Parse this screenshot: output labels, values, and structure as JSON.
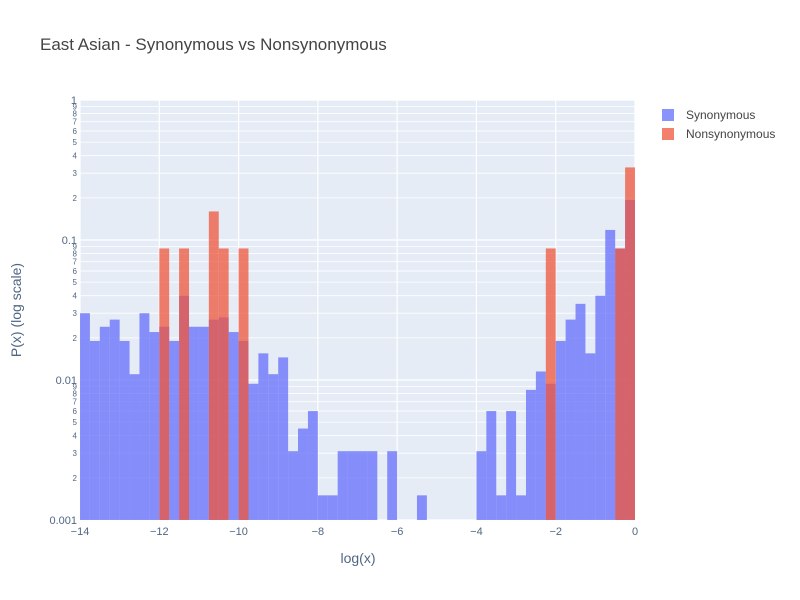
{
  "chart_data": {
    "type": "bar",
    "title": "East Asian - Synonymous vs Nonsynonymous",
    "xlabel": "log(x)",
    "ylabel": "P(x) (log scale)",
    "xlim": [
      -14,
      0
    ],
    "ylim": [
      0.001,
      1
    ],
    "y_scale": "log",
    "bin_width": 0.25,
    "grid": true,
    "legend_position": "top-right",
    "x_ticks": [
      "−14",
      "−12",
      "−10",
      "−8",
      "−6",
      "−4",
      "−2",
      "0"
    ],
    "y_major_ticks": [
      "0.001",
      "0.01",
      "0.1",
      "1"
    ],
    "y_minor_tick_labels": [
      "2",
      "3",
      "4",
      "5",
      "6",
      "7",
      "8",
      "9"
    ],
    "series": [
      {
        "name": "Synonymous",
        "color": "#636efa",
        "opacity": 0.75,
        "x": [
          -13.875,
          -13.625,
          -13.375,
          -13.125,
          -12.875,
          -12.625,
          -12.375,
          -12.125,
          -11.875,
          -11.625,
          -11.375,
          -11.125,
          -10.875,
          -10.625,
          -10.375,
          -10.125,
          -9.875,
          -9.625,
          -9.375,
          -9.125,
          -8.875,
          -8.625,
          -8.375,
          -8.125,
          -7.875,
          -7.625,
          -7.375,
          -7.125,
          -6.875,
          -6.625,
          -6.125,
          -5.375,
          -3.875,
          -3.625,
          -3.375,
          -3.125,
          -2.875,
          -2.625,
          -2.375,
          -2.125,
          -1.875,
          -1.625,
          -1.375,
          -1.125,
          -0.875,
          -0.625,
          -0.375,
          -0.125
        ],
        "values": [
          0.03,
          0.019,
          0.024,
          0.027,
          0.019,
          0.011,
          0.03,
          0.022,
          0.024,
          0.019,
          0.04,
          0.024,
          0.024,
          0.027,
          0.028,
          0.022,
          0.019,
          0.0094,
          0.0155,
          0.011,
          0.0145,
          0.0031,
          0.0045,
          0.006,
          0.0015,
          0.0015,
          0.0031,
          0.0031,
          0.0031,
          0.0031,
          0.0031,
          0.0015,
          0.0031,
          0.006,
          0.0015,
          0.006,
          0.0015,
          0.0085,
          0.0115,
          0.0094,
          0.019,
          0.027,
          0.035,
          0.0155,
          0.04,
          0.118,
          0.087,
          0.193
        ]
      },
      {
        "name": "Nonsynonymous",
        "color": "#ef553b",
        "opacity": 0.75,
        "x": [
          -11.875,
          -11.375,
          -10.625,
          -10.375,
          -9.875,
          -2.125,
          -0.375,
          -0.125
        ],
        "values": [
          0.087,
          0.087,
          0.16,
          0.087,
          0.087,
          0.087,
          0.087,
          0.33
        ]
      }
    ]
  }
}
